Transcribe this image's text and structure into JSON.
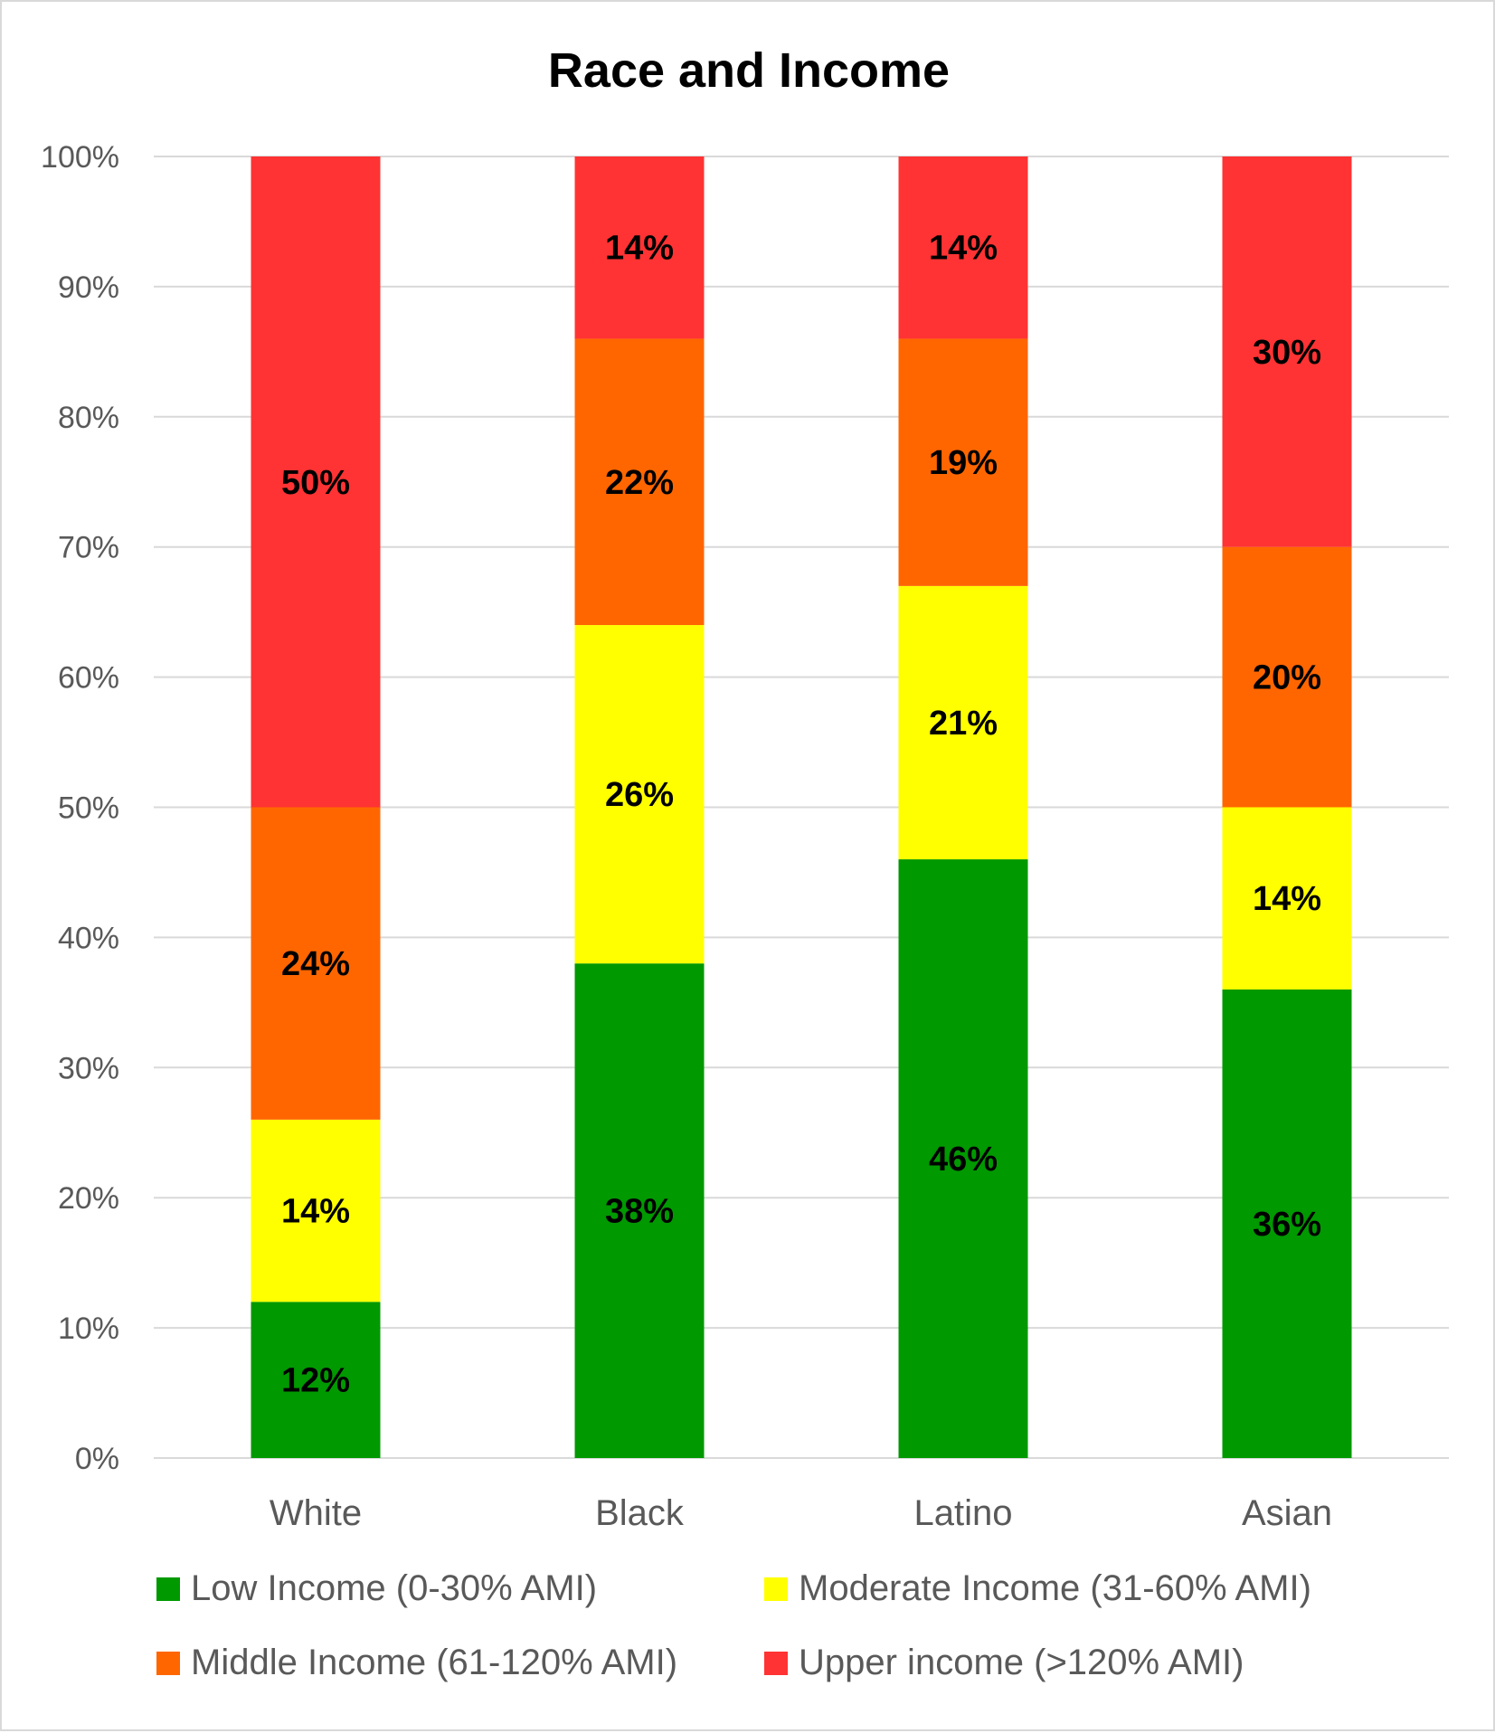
{
  "chart_data": {
    "type": "bar",
    "stacked": true,
    "percent_stacked": true,
    "title": "Race and Income",
    "xlabel": "",
    "ylabel": "",
    "ylim": [
      0,
      100
    ],
    "y_ticks": [
      0,
      10,
      20,
      30,
      40,
      50,
      60,
      70,
      80,
      90,
      100
    ],
    "y_tick_labels": [
      "0%",
      "10%",
      "20%",
      "30%",
      "40%",
      "50%",
      "60%",
      "70%",
      "80%",
      "90%",
      "100%"
    ],
    "grid": true,
    "legend_position": "bottom",
    "categories": [
      "White",
      "Black",
      "Latino",
      "Asian"
    ],
    "series": [
      {
        "name": "Low Income (0-30% AMI)",
        "color": "#009900",
        "values": [
          12,
          38,
          46,
          36
        ],
        "labels": [
          "12%",
          "38%",
          "46%",
          "36%"
        ]
      },
      {
        "name": "Moderate Income (31-60% AMI)",
        "color": "#FFFF00",
        "values": [
          14,
          26,
          21,
          14
        ],
        "labels": [
          "14%",
          "26%",
          "21%",
          "14%"
        ]
      },
      {
        "name": "Middle Income (61-120% AMI)",
        "color": "#FF6600",
        "values": [
          24,
          22,
          19,
          20
        ],
        "labels": [
          "24%",
          "22%",
          "19%",
          "20%"
        ]
      },
      {
        "name": "Upper income (>120% AMI)",
        "color": "#FF3333",
        "values": [
          50,
          14,
          14,
          30
        ],
        "labels": [
          "50%",
          "14%",
          "14%",
          "30%"
        ]
      }
    ]
  }
}
